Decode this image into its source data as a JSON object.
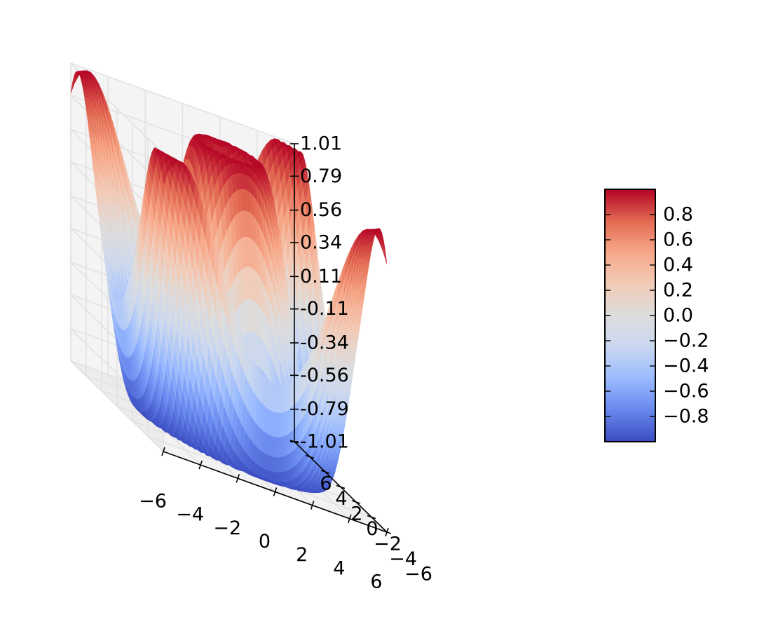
{
  "chart_data": {
    "type": "surface3d",
    "function": "z = sin(sqrt(x^2 + y^2))",
    "colormap": "coolwarm",
    "colormap_stops": [
      "#3b4cc0",
      "#6788ee",
      "#9abbff",
      "#c9d7f0",
      "#dddddd",
      "#f2cbb7",
      "#f7a889",
      "#e26952",
      "#b40426"
    ],
    "x": {
      "lim": [
        -6,
        6
      ],
      "ticks": [
        -6,
        -4,
        -2,
        0,
        2,
        4,
        6
      ],
      "tick_labels": [
        "−6",
        "−4",
        "−2",
        "0",
        "2",
        "4",
        "6"
      ]
    },
    "y": {
      "lim": [
        -6,
        6
      ],
      "ticks": [
        -6,
        -4,
        -2,
        0,
        2,
        4,
        6
      ],
      "tick_labels": [
        "−6",
        "−4",
        "−2",
        "0",
        "2",
        "4",
        "6"
      ]
    },
    "z": {
      "lim": [
        -1.01,
        1.01
      ],
      "ticks": [
        -1.01,
        -0.79,
        -0.56,
        -0.34,
        -0.11,
        0.11,
        0.34,
        0.56,
        0.79,
        1.01
      ],
      "tick_labels": [
        "-1.01",
        "-0.79",
        "-0.56",
        "-0.34",
        "-0.11",
        "0.11",
        "0.34",
        "0.56",
        "0.79",
        "1.01"
      ]
    },
    "colorbar": {
      "range": [
        -1,
        1
      ],
      "ticks": [
        -0.8,
        -0.6,
        -0.4,
        -0.2,
        0.0,
        0.2,
        0.4,
        0.6,
        0.8
      ],
      "tick_labels": [
        "−0.8",
        "−0.6",
        "−0.4",
        "−0.2",
        "0.0",
        "0.2",
        "0.4",
        "0.6",
        "0.8"
      ]
    },
    "grid": true,
    "title": "",
    "xlabel": "",
    "ylabel": "",
    "zlabel": ""
  }
}
